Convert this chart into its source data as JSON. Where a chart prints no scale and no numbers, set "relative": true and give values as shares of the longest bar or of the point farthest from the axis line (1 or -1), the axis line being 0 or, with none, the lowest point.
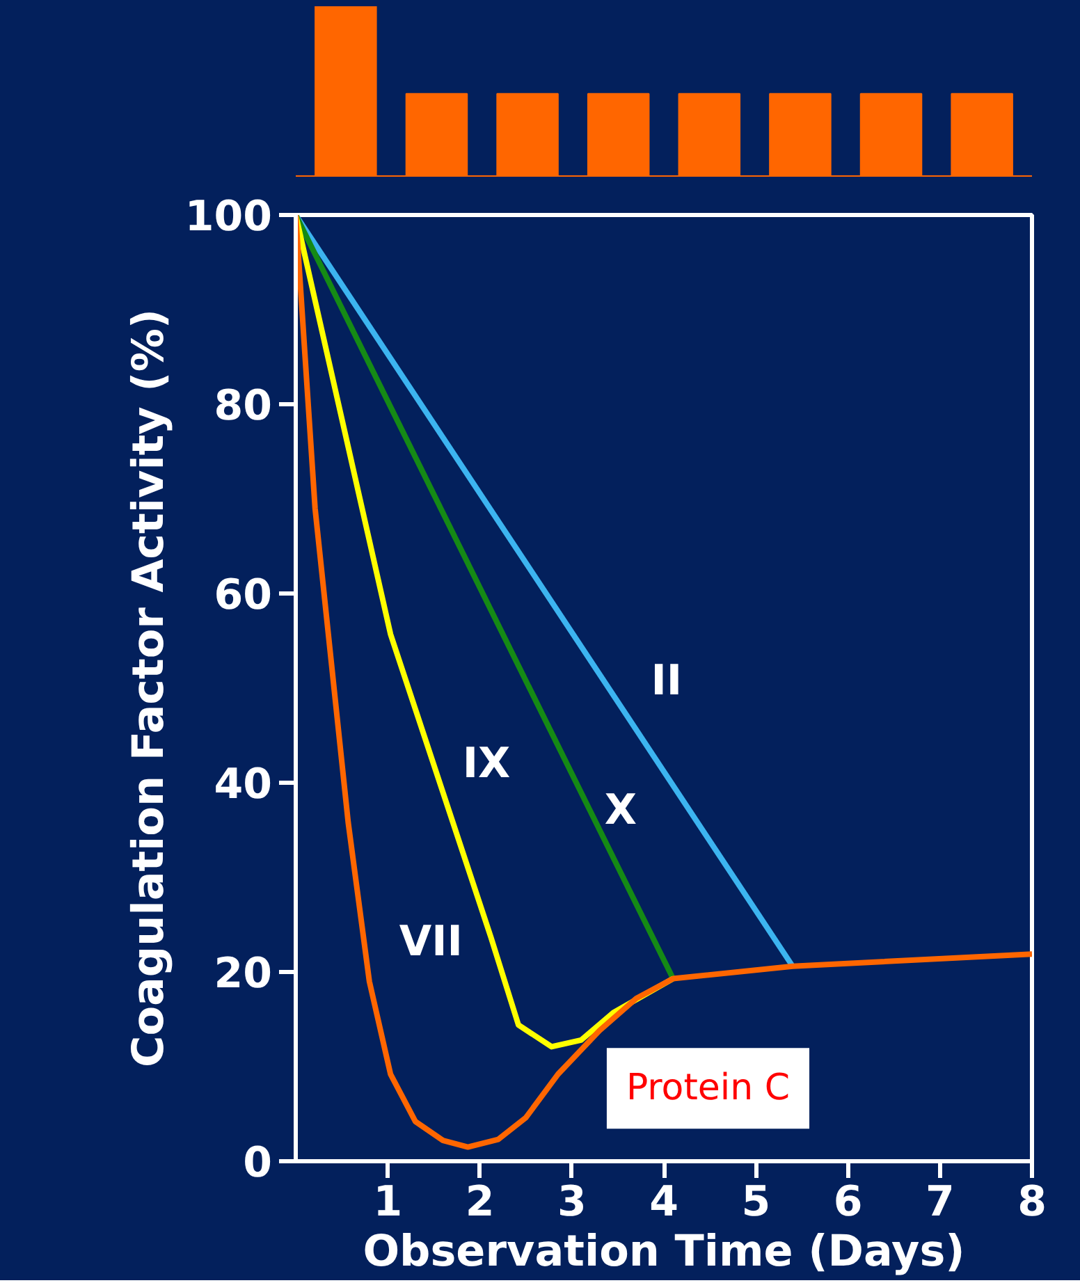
{
  "chart_data": [
    {
      "type": "bar",
      "relative": true,
      "categories": [
        null,
        null,
        null,
        null,
        null,
        null,
        null,
        null
      ],
      "values": [
        1,
        0.485,
        0.485,
        0.485,
        0.485,
        0.485,
        0.485,
        0.485
      ],
      "color": "#ff6600"
    },
    {
      "type": "line",
      "xlabel": "Observation Time (Days)",
      "ylabel": "Coagulation Factor Activity (%)",
      "xlim": [
        0,
        8
      ],
      "ylim": [
        0,
        100
      ],
      "xticks": [
        1,
        2,
        3,
        4,
        5,
        6,
        7,
        8
      ],
      "yticks": [
        0,
        20,
        40,
        60,
        80,
        100
      ],
      "grid": false,
      "legend": false,
      "marker": "none",
      "line_style": "solid",
      "series": [
        {
          "name": "II",
          "color": "#3cb4f0",
          "x": [
            0,
            5.4
          ],
          "values": [
            100,
            20.6
          ]
        },
        {
          "name": "X",
          "color": "#158a15",
          "x": [
            0,
            4.1
          ],
          "values": [
            100,
            19.3
          ]
        },
        {
          "name": "IX",
          "color": "#ffff00",
          "x": [
            0,
            1.03,
            2.12,
            2.42,
            2.78,
            3.1,
            3.45,
            4.1
          ],
          "values": [
            100,
            55.7,
            23.7,
            14.4,
            12.1,
            12.8,
            15.7,
            19.3
          ]
        },
        {
          "name": "VII",
          "color": "#ff6600",
          "x": [
            0,
            0.21,
            0.57,
            0.8,
            1.03,
            1.3,
            1.6,
            1.87,
            2.2,
            2.5,
            2.85,
            3.3,
            3.7,
            4.1,
            5.4,
            8
          ],
          "values": [
            100,
            69,
            35.8,
            19,
            9.2,
            4.2,
            2.2,
            1.5,
            2.3,
            4.6,
            9.2,
            13.8,
            17.2,
            19.3,
            20.6,
            21.9
          ]
        }
      ],
      "annotations": [
        "Protein C"
      ]
    }
  ]
}
